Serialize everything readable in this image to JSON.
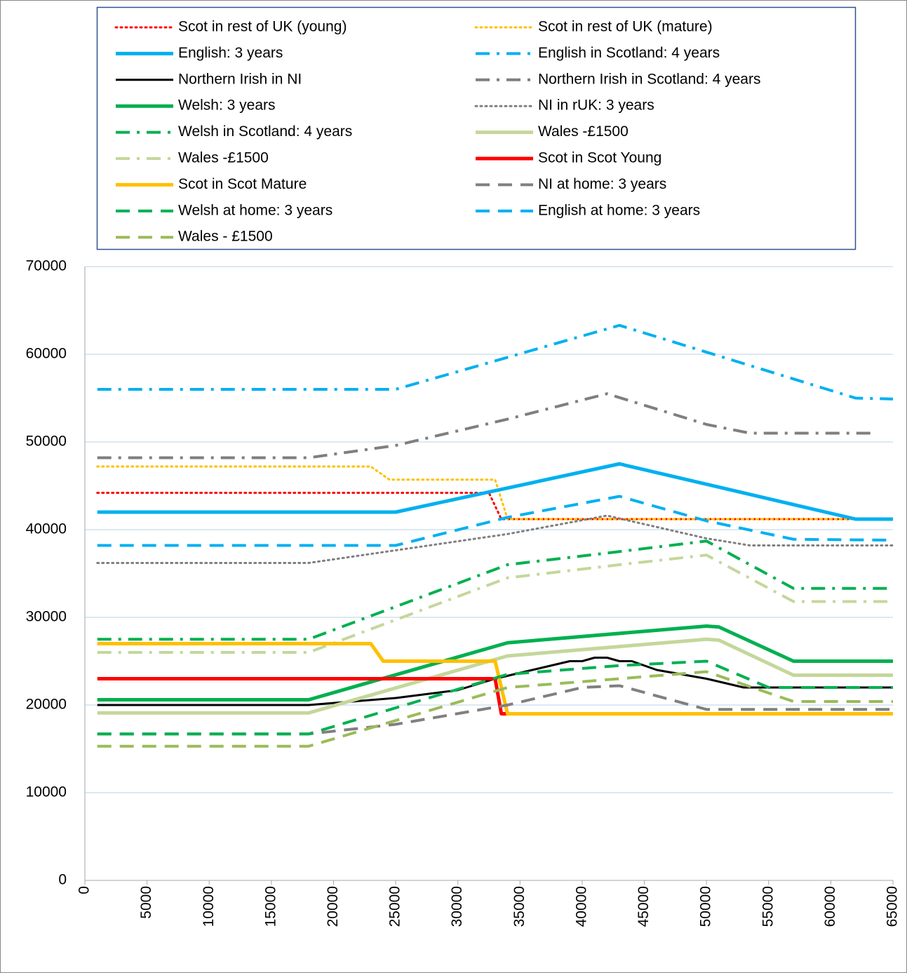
{
  "chart_data": {
    "type": "line",
    "xlim": [
      0,
      65000
    ],
    "xticks": [
      0,
      5000,
      10000,
      15000,
      20000,
      25000,
      30000,
      35000,
      40000,
      45000,
      50000,
      55000,
      60000,
      65000
    ],
    "ylim": [
      0,
      70000
    ],
    "yticks": [
      0,
      10000,
      20000,
      30000,
      40000,
      50000,
      60000,
      70000
    ],
    "grid": true,
    "legend": "top",
    "series": [
      {
        "name": "Scot in rest of UK (young)",
        "color": "#ff0000",
        "style": "dotted",
        "x": [
          1000,
          32500,
          33500,
          62000
        ],
        "values": [
          44200,
          44200,
          41200,
          41200
        ]
      },
      {
        "name": "Scot in rest of UK (mature)",
        "color": "#ffc000",
        "style": "dotted",
        "x": [
          1000,
          23000,
          24500,
          33000,
          34000,
          62000
        ],
        "values": [
          47200,
          47200,
          45700,
          45700,
          41200,
          41200
        ]
      },
      {
        "name": "English: 3 years",
        "color": "#00b0f0",
        "style": "solid",
        "x": [
          1000,
          25000,
          43000,
          62000,
          65000
        ],
        "values": [
          42000,
          42000,
          47500,
          41200,
          41200
        ]
      },
      {
        "name": "English in Scotland: 4 years",
        "color": "#00b0f0",
        "style": "dashdot",
        "x": [
          1000,
          25000,
          43000,
          62000,
          65000
        ],
        "values": [
          56000,
          56000,
          63300,
          55000,
          54900
        ]
      },
      {
        "name": "Northern Irish in NI",
        "color": "#000000",
        "style": "thin",
        "x": [
          1000,
          18000,
          25000,
          30000,
          33000,
          36000,
          39000,
          40000,
          41000,
          42000,
          43000,
          44000,
          46000,
          50000,
          53000,
          65000
        ],
        "values": [
          20000,
          20000,
          20800,
          21700,
          23000,
          24000,
          25000,
          25000,
          25400,
          25400,
          25000,
          25000,
          24000,
          23000,
          22000,
          22000
        ]
      },
      {
        "name": "Northern Irish in Scotland: 4 years",
        "color": "#7f7f7f",
        "style": "dashdot",
        "x": [
          1000,
          18000,
          25000,
          34000,
          42000,
          50000,
          53500,
          63500
        ],
        "values": [
          48200,
          48200,
          49600,
          52600,
          55500,
          52000,
          51000,
          51000
        ]
      },
      {
        "name": "Welsh: 3 years",
        "color": "#00b050",
        "style": "solid",
        "x": [
          1000,
          18000,
          34000,
          50000,
          51000,
          57000,
          65000
        ],
        "values": [
          20600,
          20600,
          27100,
          29000,
          28900,
          25000,
          25000
        ]
      },
      {
        "name": "NI in rUK: 3 years",
        "color": "#7f7f7f",
        "style": "dotted",
        "x": [
          1000,
          18000,
          34000,
          42000,
          50000,
          53500,
          65000
        ],
        "values": [
          36200,
          36200,
          39500,
          41600,
          39000,
          38200,
          38200
        ]
      },
      {
        "name": "Welsh in Scotland: 4 years",
        "color": "#00b050",
        "style": "dashdot",
        "x": [
          1000,
          18000,
          34000,
          43000,
          50000,
          57000,
          65000
        ],
        "values": [
          27500,
          27500,
          36000,
          37500,
          38700,
          33300,
          33300
        ]
      },
      {
        "name": "Wales -£1500",
        "color": "#c4d79b",
        "style": "solid",
        "x": [
          1000,
          18000,
          34000,
          50000,
          51000,
          57000,
          65000
        ],
        "values": [
          19100,
          19100,
          25600,
          27500,
          27400,
          23400,
          23400
        ]
      },
      {
        "name": "Wales -£1500",
        "color": "#c4d79b",
        "style": "dashdot",
        "x": [
          1000,
          18000,
          34000,
          43000,
          50000,
          57000,
          65000
        ],
        "values": [
          26000,
          26000,
          34500,
          36000,
          37100,
          31800,
          31800
        ]
      },
      {
        "name": "Scot in Scot Young",
        "color": "#ff0000",
        "style": "solid",
        "x": [
          1000,
          33000,
          33500,
          65000
        ],
        "values": [
          23000,
          23000,
          19000,
          19000
        ]
      },
      {
        "name": "Scot in Scot Mature",
        "color": "#ffc000",
        "style": "solid",
        "x": [
          1000,
          23000,
          24000,
          33000,
          34000,
          65000
        ],
        "values": [
          27000,
          27000,
          25000,
          25000,
          19000,
          19000
        ]
      },
      {
        "name": "NI at home: 3 years",
        "color": "#808080",
        "style": "dashed",
        "x": [
          1000,
          18000,
          25000,
          34000,
          40000,
          43000,
          50000,
          65000
        ],
        "values": [
          16700,
          16700,
          17800,
          20000,
          22000,
          22200,
          19500,
          19500
        ]
      },
      {
        "name": "Welsh at home: 3 years",
        "color": "#00b050",
        "style": "dashed",
        "x": [
          1000,
          18000,
          34000,
          43000,
          50000,
          55000,
          65000
        ],
        "values": [
          16700,
          16700,
          23500,
          24500,
          25000,
          22000,
          22000
        ]
      },
      {
        "name": "English at home: 3 years",
        "color": "#00b0f0",
        "style": "dashed",
        "x": [
          1000,
          25000,
          34000,
          43000,
          50000,
          57000,
          65000
        ],
        "values": [
          38200,
          38200,
          41400,
          43800,
          41000,
          38900,
          38800
        ]
      },
      {
        "name": "Wales - £1500",
        "color": "#9bbb59",
        "style": "dashed",
        "x": [
          1000,
          18000,
          34000,
          43000,
          50000,
          57000,
          65000
        ],
        "values": [
          15300,
          15300,
          22000,
          23000,
          23800,
          20400,
          20400
        ]
      }
    ]
  }
}
